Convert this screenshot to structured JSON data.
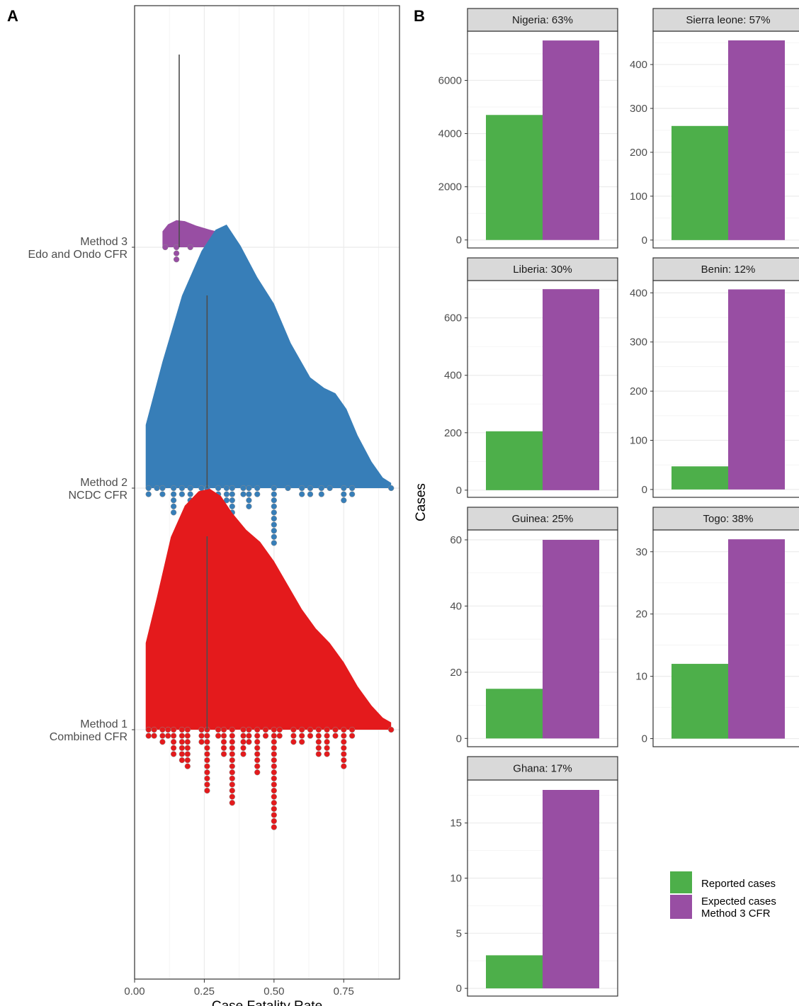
{
  "panels": {
    "a_label": "A",
    "b_label": "B"
  },
  "chart_data": [
    {
      "type": "density-dotplot",
      "panel": "A",
      "xlabel": "Case Fatality Rate",
      "ylabel": "",
      "xlim": [
        0,
        0.95
      ],
      "xticks": [
        0.0,
        0.25,
        0.5,
        0.75
      ],
      "xtick_labels": [
        "0.00",
        "0.25",
        "0.50",
        "0.75"
      ],
      "grid": true,
      "median_line": true,
      "categories": [
        {
          "id": "m3",
          "label_line1": "Method 3",
          "label_line2": "Edo and Ondo CFR",
          "color": "#984ea3",
          "median": 0.16,
          "density": [
            [
              0.1,
              0.5
            ],
            [
              0.12,
              0.72
            ],
            [
              0.15,
              0.85
            ],
            [
              0.18,
              0.82
            ],
            [
              0.22,
              0.68
            ],
            [
              0.27,
              0.55
            ],
            [
              0.33,
              0.42
            ]
          ],
          "dots": [
            [
              0.11,
              1
            ],
            [
              0.15,
              3
            ],
            [
              0.2,
              1
            ],
            [
              0.26,
              2
            ],
            [
              0.33,
              1
            ]
          ]
        },
        {
          "id": "m2",
          "label_line1": "Method 2",
          "label_line2": "NCDC CFR",
          "color": "#377eb8",
          "median": 0.26,
          "density": [
            [
              0.04,
              0.24
            ],
            [
              0.1,
              0.48
            ],
            [
              0.17,
              0.73
            ],
            [
              0.24,
              0.9
            ],
            [
              0.29,
              0.98
            ],
            [
              0.33,
              1.0
            ],
            [
              0.38,
              0.92
            ],
            [
              0.44,
              0.8
            ],
            [
              0.5,
              0.7
            ],
            [
              0.56,
              0.55
            ],
            [
              0.63,
              0.42
            ],
            [
              0.68,
              0.38
            ],
            [
              0.72,
              0.36
            ],
            [
              0.76,
              0.3
            ],
            [
              0.8,
              0.2
            ],
            [
              0.85,
              0.1
            ],
            [
              0.89,
              0.04
            ],
            [
              0.92,
              0.02
            ]
          ],
          "dots": [
            [
              0.05,
              2
            ],
            [
              0.08,
              1
            ],
            [
              0.1,
              2
            ],
            [
              0.14,
              5
            ],
            [
              0.17,
              2
            ],
            [
              0.2,
              4
            ],
            [
              0.24,
              2
            ],
            [
              0.26,
              5
            ],
            [
              0.3,
              2
            ],
            [
              0.33,
              3
            ],
            [
              0.35,
              10
            ],
            [
              0.39,
              2
            ],
            [
              0.41,
              4
            ],
            [
              0.44,
              2
            ],
            [
              0.5,
              10
            ],
            [
              0.55,
              1
            ],
            [
              0.6,
              2
            ],
            [
              0.63,
              2
            ],
            [
              0.67,
              2
            ],
            [
              0.7,
              1
            ],
            [
              0.75,
              3
            ],
            [
              0.78,
              2
            ],
            [
              0.92,
              1
            ]
          ]
        },
        {
          "id": "m1",
          "label_line1": "Method 1",
          "label_line2": "Combined CFR",
          "color": "#e41a1c",
          "median": 0.26,
          "density": [
            [
              0.04,
              0.36
            ],
            [
              0.08,
              0.55
            ],
            [
              0.13,
              0.8
            ],
            [
              0.18,
              0.93
            ],
            [
              0.23,
              0.99
            ],
            [
              0.27,
              1.0
            ],
            [
              0.31,
              0.97
            ],
            [
              0.35,
              0.9
            ],
            [
              0.4,
              0.83
            ],
            [
              0.45,
              0.78
            ],
            [
              0.5,
              0.7
            ],
            [
              0.55,
              0.6
            ],
            [
              0.6,
              0.5
            ],
            [
              0.65,
              0.42
            ],
            [
              0.7,
              0.36
            ],
            [
              0.75,
              0.28
            ],
            [
              0.8,
              0.18
            ],
            [
              0.85,
              0.1
            ],
            [
              0.89,
              0.05
            ],
            [
              0.92,
              0.03
            ]
          ],
          "dots": [
            [
              0.05,
              2
            ],
            [
              0.07,
              2
            ],
            [
              0.1,
              3
            ],
            [
              0.12,
              2
            ],
            [
              0.14,
              5
            ],
            [
              0.17,
              6
            ],
            [
              0.19,
              7
            ],
            [
              0.24,
              3
            ],
            [
              0.26,
              11
            ],
            [
              0.3,
              2
            ],
            [
              0.32,
              5
            ],
            [
              0.35,
              13
            ],
            [
              0.39,
              5
            ],
            [
              0.41,
              3
            ],
            [
              0.44,
              8
            ],
            [
              0.47,
              2
            ],
            [
              0.5,
              17
            ],
            [
              0.52,
              2
            ],
            [
              0.57,
              3
            ],
            [
              0.6,
              3
            ],
            [
              0.63,
              2
            ],
            [
              0.66,
              5
            ],
            [
              0.69,
              5
            ],
            [
              0.72,
              2
            ],
            [
              0.75,
              7
            ],
            [
              0.78,
              2
            ],
            [
              0.92,
              1
            ]
          ]
        }
      ]
    },
    {
      "type": "bar",
      "panel": "B",
      "ylabel": "Cases",
      "series": [
        {
          "name": "Reported cases",
          "color": "#4daf4a"
        },
        {
          "name": "Expected cases\nMethod 3 CFR",
          "color": "#984ea3"
        }
      ],
      "facets": [
        {
          "strip": "Nigeria: 63%",
          "reported": 4700,
          "expected": 7500,
          "ylim": [
            -300,
            7850
          ],
          "ticks": [
            0,
            2000,
            4000,
            6000
          ]
        },
        {
          "strip": "Sierra leone: 57%",
          "reported": 260,
          "expected": 455,
          "ylim": [
            -18,
            476
          ],
          "ticks": [
            0,
            100,
            200,
            300,
            400
          ]
        },
        {
          "strip": "Liberia: 30%",
          "reported": 205,
          "expected": 700,
          "ylim": [
            -25,
            730
          ],
          "ticks": [
            0,
            200,
            400,
            600
          ]
        },
        {
          "strip": "Benin: 12%",
          "reported": 47,
          "expected": 407,
          "ylim": [
            -16,
            425
          ],
          "ticks": [
            0,
            100,
            200,
            300,
            400
          ]
        },
        {
          "strip": "Guinea: 25%",
          "reported": 15,
          "expected": 60,
          "ylim": [
            -2.5,
            63
          ],
          "ticks": [
            0,
            20,
            40,
            60
          ]
        },
        {
          "strip": "Togo: 38%",
          "reported": 12,
          "expected": 32,
          "ylim": [
            -1.3,
            33.5
          ],
          "ticks": [
            0,
            10,
            20,
            30
          ]
        },
        {
          "strip": "Ghana: 17%",
          "reported": 3,
          "expected": 18,
          "ylim": [
            -0.7,
            18.9
          ],
          "ticks": [
            0,
            5,
            10,
            15
          ]
        }
      ]
    }
  ]
}
